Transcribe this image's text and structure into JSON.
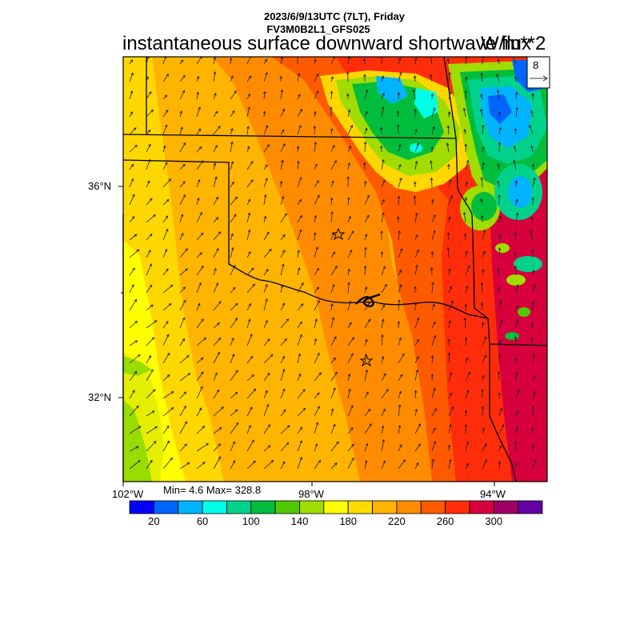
{
  "header": {
    "date_line": "2023/6/9/13UTC (7LT), Friday",
    "model_line": "FV3M0B2L1_GFS025",
    "variable_title": "instantaneous surface downward shortwave flux",
    "units": "W/m**2"
  },
  "map": {
    "lat_labels": [
      "36°N",
      "32°N"
    ],
    "lon_labels": [
      "102°W",
      "98°W",
      "94°W"
    ],
    "wind_reference_value": "8",
    "field_colors": {
      "yellow": "#ffff00",
      "gold": "#ffd700",
      "amber": "#ffb400",
      "orange": "#ff8c00",
      "dark_orange": "#ff5a00",
      "red": "#ff2d0a",
      "crimson": "#d7003c",
      "lime": "#99dd00",
      "green": "#44cc11",
      "teal": "#00cc88",
      "cyan": "#00ccff",
      "blue": "#0066ff"
    }
  },
  "stats": {
    "minmax": "Min= 4.6 Max= 328.8"
  },
  "colorbar": {
    "colors": [
      "#0000ff",
      "#0064ff",
      "#00b4ff",
      "#00ffe6",
      "#00d28c",
      "#00be3c",
      "#50c800",
      "#a0dc00",
      "#ffff00",
      "#ffdc00",
      "#ffb400",
      "#ff8c00",
      "#ff5a00",
      "#ff2d0a",
      "#d7003c",
      "#a00064",
      "#6400a0"
    ],
    "labels": [
      "20",
      "60",
      "100",
      "140",
      "180",
      "220",
      "260",
      "300"
    ]
  }
}
